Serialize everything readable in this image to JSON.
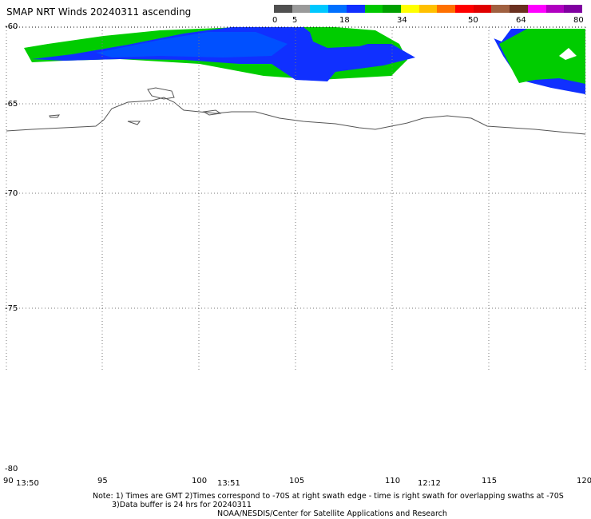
{
  "title": "SMAP NRT Winds 20240311 ascending",
  "colorbar": {
    "ticks": [
      "0",
      "5",
      "18",
      "34",
      "50",
      "64",
      "80"
    ],
    "segments": [
      {
        "color": "#505050"
      },
      {
        "color": "#9a9a9a"
      },
      {
        "color": "#00c8ff"
      },
      {
        "color": "#0070ff"
      },
      {
        "color": "#1030ff"
      },
      {
        "color": "#00c800"
      },
      {
        "color": "#00a000"
      },
      {
        "color": "#ffff00"
      },
      {
        "color": "#ffc000"
      },
      {
        "color": "#ff7000"
      },
      {
        "color": "#ff0000"
      },
      {
        "color": "#e00000"
      },
      {
        "color": "#a06040"
      },
      {
        "color": "#6a3020"
      },
      {
        "color": "#ff00ff"
      },
      {
        "color": "#b000c0"
      },
      {
        "color": "#8000a0"
      }
    ]
  },
  "axes": {
    "lat_labels": [
      "-60",
      "-65",
      "-70",
      "-75",
      "-80"
    ],
    "lon_labels": [
      "90",
      "95",
      "100",
      "105",
      "110",
      "115",
      "120"
    ],
    "times": [
      "13:50",
      "13:51",
      "12:12"
    ]
  },
  "notes": {
    "line1": "Note: 1) Times are GMT 2)Times correspond to -70S at right swath edge - time is right swath for overlapping swaths at -70S",
    "line2": "3)Data buffer is 24 hrs for 20240311",
    "line3": "NOAA/NESDIS/Center for Satellite Applications and Research"
  }
}
